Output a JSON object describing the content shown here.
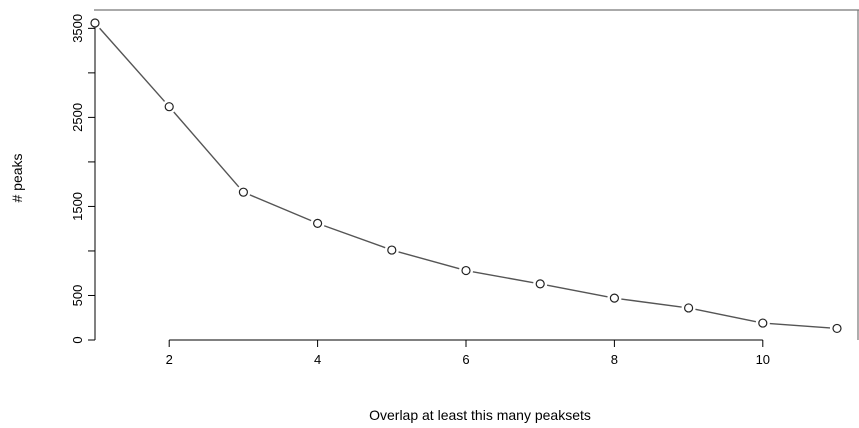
{
  "chart_data": {
    "type": "line",
    "title": "",
    "xlabel": "Overlap at least this many peaksets",
    "ylabel": "# peaks",
    "x": [
      1,
      2,
      3,
      4,
      5,
      6,
      7,
      8,
      9,
      10,
      11
    ],
    "series": [
      {
        "values": [
          3560,
          2620,
          1660,
          1310,
          1010,
          780,
          630,
          470,
          360,
          190,
          130
        ]
      }
    ],
    "xlim": [
      1,
      11
    ],
    "ylim": [
      0,
      3560
    ],
    "xticks": [
      2,
      4,
      6,
      8,
      10
    ],
    "yticks": [
      0,
      500,
      1000,
      1500,
      2000,
      2500,
      3000,
      3500
    ],
    "ytick_labels": [
      "0",
      "500",
      "",
      "1500",
      "",
      "2500",
      "",
      "3500"
    ],
    "grid": false,
    "legend": "none",
    "marker": "open-circle",
    "line_color": "#555555"
  }
}
